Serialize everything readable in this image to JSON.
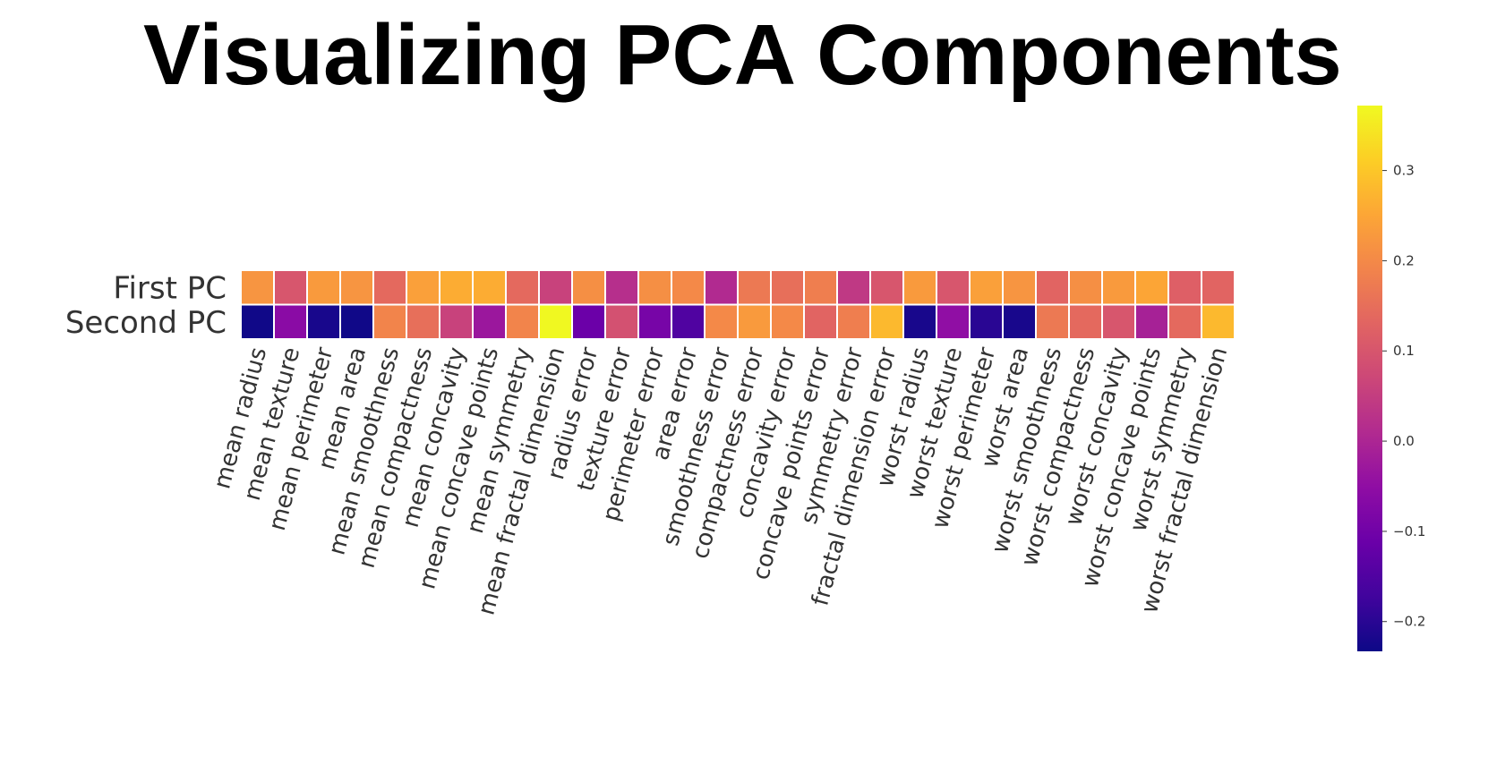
{
  "title": "Visualizing PCA Components",
  "chart_data": {
    "type": "heatmap",
    "title": "Visualizing PCA Components",
    "colormap": "plasma",
    "rows": [
      "First PC",
      "Second PC"
    ],
    "columns": [
      "mean radius",
      "mean texture",
      "mean perimeter",
      "mean area",
      "mean smoothness",
      "mean compactness",
      "mean concavity",
      "mean concave points",
      "mean symmetry",
      "mean fractal dimension",
      "radius error",
      "texture error",
      "perimeter error",
      "area error",
      "smoothness error",
      "compactness error",
      "concavity error",
      "concave points error",
      "symmetry error",
      "fractal dimension error",
      "worst radius",
      "worst texture",
      "worst perimeter",
      "worst area",
      "worst smoothness",
      "worst compactness",
      "worst concavity",
      "worst concave points",
      "worst symmetry",
      "worst fractal dimension"
    ],
    "values": [
      [
        0.22,
        0.1,
        0.23,
        0.22,
        0.14,
        0.24,
        0.26,
        0.26,
        0.14,
        0.06,
        0.21,
        0.02,
        0.21,
        0.2,
        0.01,
        0.17,
        0.15,
        0.18,
        0.04,
        0.1,
        0.23,
        0.1,
        0.24,
        0.22,
        0.13,
        0.21,
        0.23,
        0.25,
        0.12,
        0.13
      ],
      [
        -0.23,
        -0.06,
        -0.22,
        -0.23,
        0.19,
        0.15,
        0.06,
        -0.03,
        0.19,
        0.37,
        -0.11,
        0.09,
        -0.09,
        -0.15,
        0.2,
        0.23,
        0.2,
        0.13,
        0.18,
        0.28,
        -0.22,
        -0.05,
        -0.2,
        -0.22,
        0.17,
        0.14,
        0.1,
        -0.01,
        0.14,
        0.28
      ]
    ],
    "colorbar": {
      "min": -0.233,
      "max": 0.372,
      "ticks": [
        -0.2,
        -0.1,
        0.0,
        0.1,
        0.2,
        0.3
      ],
      "tick_labels": [
        "−0.2",
        "−0.1",
        "0.0",
        "0.1",
        "0.2",
        "0.3"
      ]
    }
  }
}
